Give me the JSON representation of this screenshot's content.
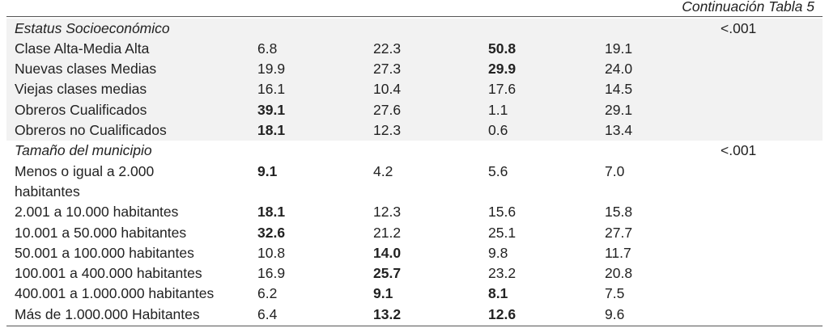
{
  "caption": "Continuación Tabla 5",
  "sections": [
    {
      "title": "Estatus Socioeconómico",
      "p": "<.001",
      "shaded": true,
      "rows": [
        {
          "label": "Clase Alta-Media Alta",
          "values": [
            "6.8",
            "22.3",
            "50.8",
            "19.1"
          ],
          "bold": [
            2
          ]
        },
        {
          "label": "Nuevas clases Medias",
          "values": [
            "19.9",
            "27.3",
            "29.9",
            "24.0"
          ],
          "bold": [
            2
          ]
        },
        {
          "label": "Viejas clases medias",
          "values": [
            "16.1",
            "10.4",
            "17.6",
            "14.5"
          ],
          "bold": []
        },
        {
          "label": "Obreros Cualificados",
          "values": [
            "39.1",
            "27.6",
            "1.1",
            "29.1"
          ],
          "bold": [
            0
          ]
        },
        {
          "label": "Obreros no Cualificados",
          "values": [
            "18.1",
            "12.3",
            "0.6",
            "13.4"
          ],
          "bold": [
            0
          ]
        }
      ]
    },
    {
      "title": "Tamaño del municipio",
      "p": "<.001",
      "shaded": false,
      "rows": [
        {
          "label": "Menos o igual a 2.000\nhabitantes",
          "values": [
            "9.1",
            "4.2",
            "5.6",
            "7.0"
          ],
          "bold": [
            0
          ]
        },
        {
          "label": "2.001 a 10.000 habitantes",
          "values": [
            "18.1",
            "12.3",
            "15.6",
            "15.8"
          ],
          "bold": [
            0
          ]
        },
        {
          "label": "10.001 a 50.000 habitantes",
          "values": [
            "32.6",
            "21.2",
            "25.1",
            "27.7"
          ],
          "bold": [
            0
          ]
        },
        {
          "label": "50.001 a 100.000 habitantes",
          "values": [
            "10.8",
            "14.0",
            "9.8",
            "11.7"
          ],
          "bold": [
            1
          ]
        },
        {
          "label": "100.001 a 400.000 habitantes",
          "values": [
            "16.9",
            "25.7",
            "23.2",
            "20.8"
          ],
          "bold": [
            1
          ]
        },
        {
          "label": "400.001 a 1.000.000 habitantes",
          "values": [
            "6.2",
            "9.1",
            "8.1",
            "7.5"
          ],
          "bold": [
            1,
            2
          ]
        },
        {
          "label": "Más de 1.000.000 Habitantes",
          "values": [
            "6.4",
            "13.2",
            "12.6",
            "9.6"
          ],
          "bold": [
            1,
            2
          ]
        }
      ]
    }
  ]
}
